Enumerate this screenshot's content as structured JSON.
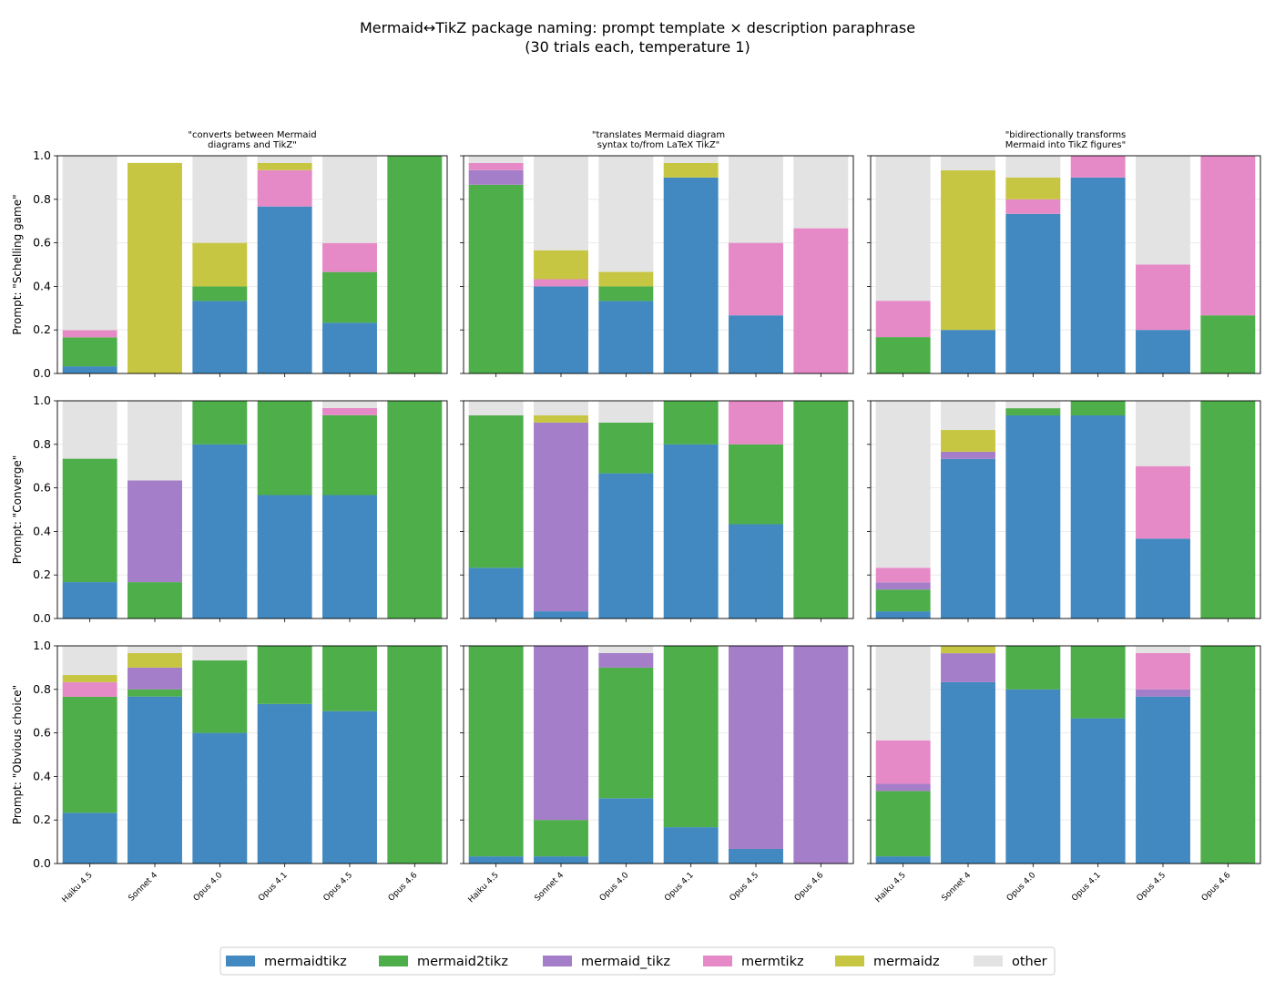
{
  "figure": {
    "title_line1": "Mermaid↔TikZ package naming: prompt template × description paraphrase",
    "title_line2": "(30 trials each, temperature 1)"
  },
  "chart_data": {
    "type": "bar",
    "stacked": true,
    "ylim": [
      0,
      1
    ],
    "yticks": [
      "0.0",
      "0.2",
      "0.4",
      "0.6",
      "0.8",
      "1.0"
    ],
    "grid": "horizontal, light",
    "legend_position": "bottom-center",
    "categories": [
      "Haiku 4.5",
      "Sonnet 4",
      "Opus 4.0",
      "Opus 4.1",
      "Opus 4.5",
      "Opus 4.6"
    ],
    "columns": [
      "\"converts between Mermaid\ndiagrams and TikZ\"",
      "\"translates Mermaid diagram\nsyntax to/from LaTeX TikZ\"",
      "\"bidirectionally transforms\nMermaid into TikZ figures\""
    ],
    "rows": [
      "Prompt: \"Schelling game\"",
      "Prompt: \"Converge\"",
      "Prompt: \"Obvious choice\""
    ],
    "series": [
      {
        "name": "mermaidtikz",
        "color": "#4189c0"
      },
      {
        "name": "mermaid2tikz",
        "color": "#4eae4a"
      },
      {
        "name": "mermaid_tikz",
        "color": "#a47ec8"
      },
      {
        "name": "mermtikz",
        "color": "#e68ac7"
      },
      {
        "name": "mermaidz",
        "color": "#c7c642"
      },
      {
        "name": "other",
        "color": "#e3e3e3"
      }
    ],
    "panels": [
      [
        [
          [
            0.033,
            0.133,
            0,
            0.033,
            0,
            0.8
          ],
          [
            0,
            0,
            0,
            0,
            0.967,
            0
          ],
          [
            0.333,
            0.067,
            0,
            0,
            0.2,
            0.4
          ],
          [
            0.767,
            0,
            0,
            0.167,
            0.033,
            0.033
          ],
          [
            0.233,
            0.233,
            0,
            0.133,
            0,
            0.4
          ],
          [
            0,
            1,
            0,
            0,
            0,
            0
          ]
        ],
        [
          [
            0,
            0.867,
            0.067,
            0.033,
            0,
            0.033
          ],
          [
            0.4,
            0,
            0,
            0.033,
            0.133,
            0.433
          ],
          [
            0.333,
            0.067,
            0,
            0,
            0.067,
            0.533
          ],
          [
            0.9,
            0,
            0,
            0,
            0.067,
            0.033
          ],
          [
            0.267,
            0,
            0,
            0.333,
            0,
            0.4
          ],
          [
            0,
            0,
            0,
            0.667,
            0,
            0.333
          ]
        ],
        [
          [
            0,
            0.167,
            0,
            0.167,
            0,
            0.667
          ],
          [
            0.2,
            0,
            0,
            0,
            0.733,
            0.067
          ],
          [
            0.733,
            0,
            0,
            0.067,
            0.1,
            0.1
          ],
          [
            0.9,
            0,
            0,
            0.1,
            0,
            0
          ],
          [
            0.2,
            0,
            0,
            0.3,
            0,
            0.5
          ],
          [
            0,
            0.267,
            0,
            0.733,
            0,
            0
          ]
        ]
      ],
      [
        [
          [
            0.167,
            0.567,
            0,
            0,
            0,
            0.267
          ],
          [
            0,
            0.167,
            0.467,
            0,
            0,
            0.367
          ],
          [
            0.8,
            0.2,
            0,
            0,
            0,
            0
          ],
          [
            0.567,
            0.433,
            0,
            0,
            0,
            0
          ],
          [
            0.567,
            0.367,
            0,
            0.033,
            0,
            0.033
          ],
          [
            0,
            1,
            0,
            0,
            0,
            0
          ]
        ],
        [
          [
            0.233,
            0.7,
            0,
            0,
            0,
            0.067
          ],
          [
            0.033,
            0,
            0.867,
            0,
            0.033,
            0.067
          ],
          [
            0.667,
            0.233,
            0,
            0,
            0,
            0.1
          ],
          [
            0.8,
            0.2,
            0,
            0,
            0,
            0
          ],
          [
            0.433,
            0.367,
            0,
            0.2,
            0,
            0
          ],
          [
            0,
            1,
            0,
            0,
            0,
            0
          ]
        ],
        [
          [
            0.033,
            0.1,
            0.033,
            0.067,
            0,
            0.767
          ],
          [
            0.733,
            0,
            0.033,
            0,
            0.1,
            0.133
          ],
          [
            0.933,
            0.033,
            0,
            0,
            0,
            0.033
          ],
          [
            0.933,
            0.067,
            0,
            0,
            0,
            0
          ],
          [
            0.367,
            0,
            0,
            0.333,
            0,
            0.3
          ],
          [
            0,
            1,
            0,
            0,
            0,
            0
          ]
        ]
      ],
      [
        [
          [
            0.233,
            0.533,
            0,
            0.067,
            0.033,
            0.133
          ],
          [
            0.767,
            0.033,
            0.1,
            0,
            0.067,
            0.033
          ],
          [
            0.6,
            0.333,
            0,
            0,
            0,
            0.067
          ],
          [
            0.733,
            0.267,
            0,
            0,
            0,
            0
          ],
          [
            0.7,
            0.3,
            0,
            0,
            0,
            0
          ],
          [
            0,
            1,
            0,
            0,
            0,
            0
          ]
        ],
        [
          [
            0.033,
            0.967,
            0,
            0,
            0,
            0
          ],
          [
            0.033,
            0.167,
            0.8,
            0,
            0,
            0
          ],
          [
            0.3,
            0.6,
            0.067,
            0,
            0,
            0.033
          ],
          [
            0.167,
            0.833,
            0,
            0,
            0,
            0
          ],
          [
            0.067,
            0,
            0.933,
            0,
            0,
            0
          ],
          [
            0,
            0,
            1,
            0,
            0,
            0
          ]
        ],
        [
          [
            0.033,
            0.3,
            0.033,
            0.2,
            0,
            0.433
          ],
          [
            0.833,
            0,
            0.133,
            0,
            0.033,
            0
          ],
          [
            0.8,
            0.2,
            0,
            0,
            0,
            0
          ],
          [
            0.667,
            0.333,
            0,
            0,
            0,
            0
          ],
          [
            0.767,
            0,
            0.033,
            0.167,
            0,
            0.033
          ],
          [
            0,
            1,
            0,
            0,
            0,
            0
          ]
        ]
      ]
    ]
  }
}
